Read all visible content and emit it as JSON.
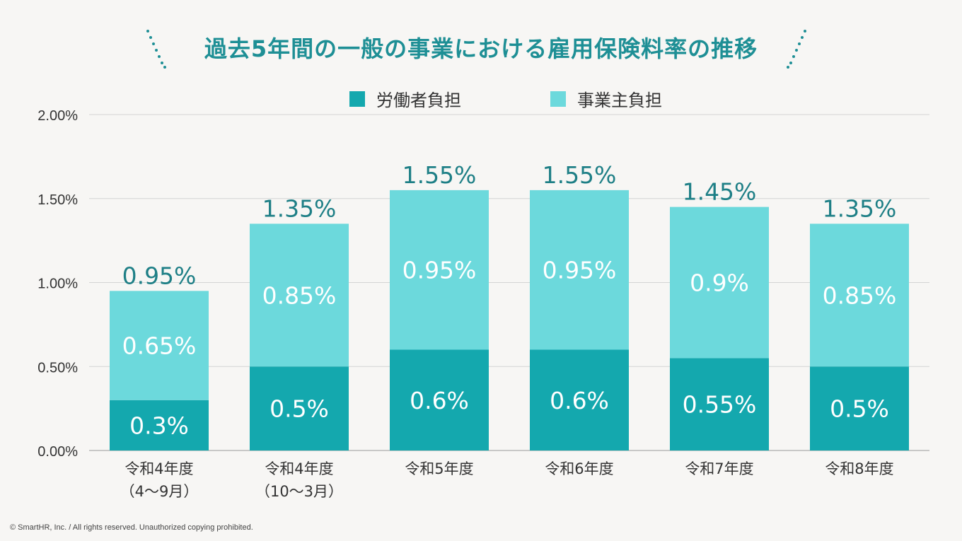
{
  "title": "過去5年間の一般の事業における雇用保険料率の推移",
  "copyright": "© SmartHR, Inc. / All rights reserved. Unauthorized copying prohibited.",
  "colors": {
    "worker": "#14a8ae",
    "employer": "#6cd9dc",
    "total_label": "#1e7f86",
    "title": "#1e8f95"
  },
  "chart_data": {
    "type": "bar",
    "stacked": true,
    "categories": [
      [
        "令和4年度",
        "（4〜9月）"
      ],
      [
        "令和4年度",
        "（10〜3月）"
      ],
      [
        "令和5年度"
      ],
      [
        "令和6年度"
      ],
      [
        "令和7年度"
      ],
      [
        "令和8年度"
      ]
    ],
    "series": [
      {
        "name": "労働者負担",
        "values": [
          0.3,
          0.5,
          0.6,
          0.6,
          0.55,
          0.5
        ],
        "labels": [
          "0.3%",
          "0.5%",
          "0.6%",
          "0.6%",
          "0.55%",
          "0.5%"
        ]
      },
      {
        "name": "事業主負担",
        "values": [
          0.65,
          0.85,
          0.95,
          0.95,
          0.9,
          0.85
        ],
        "labels": [
          "0.65%",
          "0.85%",
          "0.95%",
          "0.95%",
          "0.9%",
          "0.85%"
        ]
      }
    ],
    "totals": [
      "0.95%",
      "1.35%",
      "1.55%",
      "1.55%",
      "1.45%",
      "1.35%"
    ],
    "ylim": [
      0,
      2.0
    ],
    "yticks": [
      {
        "value": 0,
        "label": "0.00%"
      },
      {
        "value": 0.5,
        "label": "0.50%"
      },
      {
        "value": 1.0,
        "label": "1.00%"
      },
      {
        "value": 1.5,
        "label": "1.50%"
      },
      {
        "value": 2.0,
        "label": "2.00%"
      }
    ],
    "grid": true,
    "legend": "top-center"
  }
}
